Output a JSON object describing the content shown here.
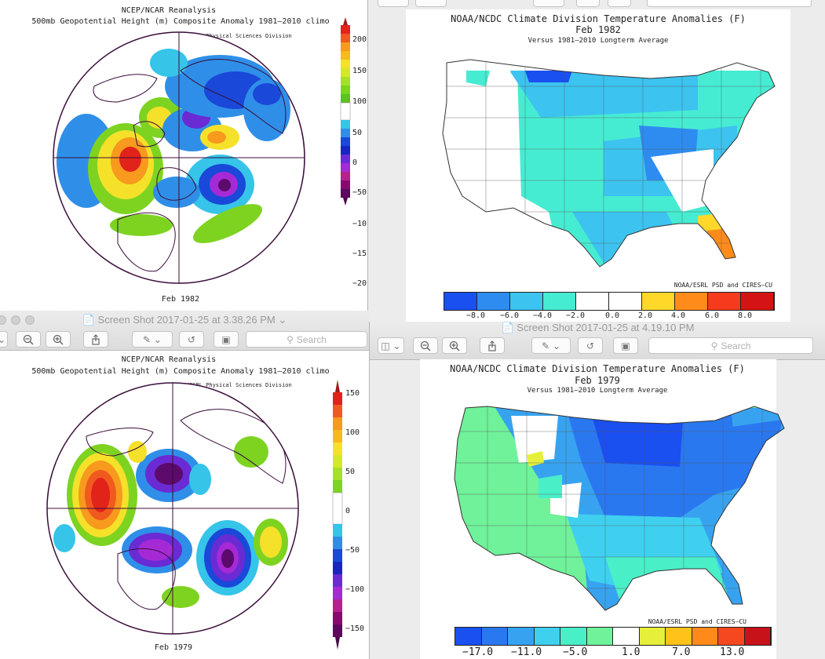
{
  "windows": {
    "top_left": {
      "title1": "NCEP/NCAR Reanalysis",
      "title2": "500mb Geopotential Height (m) Composite Anomaly 1981–2010 climo",
      "credit": "NOAA/ESRL Physical Sciences Division",
      "date": "Feb 1982",
      "colorbar_ticks": [
        "200",
        "150",
        "100",
        "50",
        "0",
        "−50",
        "−10",
        "−15",
        "−20"
      ]
    },
    "top_right": {
      "title": "NOAA/NCDC Climate Division Temperature Anomalies (F)",
      "date": "Feb 1982",
      "subtitle": "Versus 1981–2010 Longterm Average",
      "credit": "NOAA/ESRL PSD and CIRES–CU",
      "colorbar_ticks": [
        "−8.0",
        "−6.0",
        "−4.0",
        "−2.0",
        "0.0",
        "2.0",
        "4.0",
        "6.0",
        "8.0"
      ],
      "colorbar_colors": [
        "#1a4ff0",
        "#2e8cf0",
        "#3cc3f0",
        "#46ecd2",
        "#ffffff",
        "#ffffff",
        "#ffd82a",
        "#ff8c1a",
        "#f53a1e",
        "#d41414"
      ]
    },
    "bottom_left": {
      "window_title": "Screen Shot 2017-01-25 at 3.38.26 PM",
      "search_placeholder": "Search",
      "title1": "NCEP/NCAR Reanalysis",
      "title2": "500mb Geopotential Height (m) Composite Anomaly 1981–2010 climo",
      "credit": "NOAA/ESRL Physical Sciences Division",
      "date": "Feb 1979",
      "colorbar_ticks": [
        "150",
        "100",
        "50",
        "0",
        "−50",
        "−100",
        "−150"
      ]
    },
    "bottom_right": {
      "window_title": "Screen Shot 2017-01-25 at 4.19.10 PM",
      "search_placeholder": "Search",
      "title": "NOAA/NCDC Climate Division Temperature Anomalies (F)",
      "date": "Feb 1979",
      "subtitle": "Versus 1981–2010 Longterm Average",
      "credit": "NOAA/ESRL PSD and CIRES–CU",
      "colorbar_ticks": [
        "−17.0",
        "−11.0",
        "−5.0",
        "1.0",
        "7.0",
        "13.0"
      ],
      "colorbar_colors": [
        "#1a4ff0",
        "#2a78f0",
        "#37a3f0",
        "#3fd0f0",
        "#49efc7",
        "#6ff29a",
        "#ffffff",
        "#e6f03a",
        "#ffc21a",
        "#ff8a1a",
        "#f5481e",
        "#c8121a"
      ]
    }
  }
}
